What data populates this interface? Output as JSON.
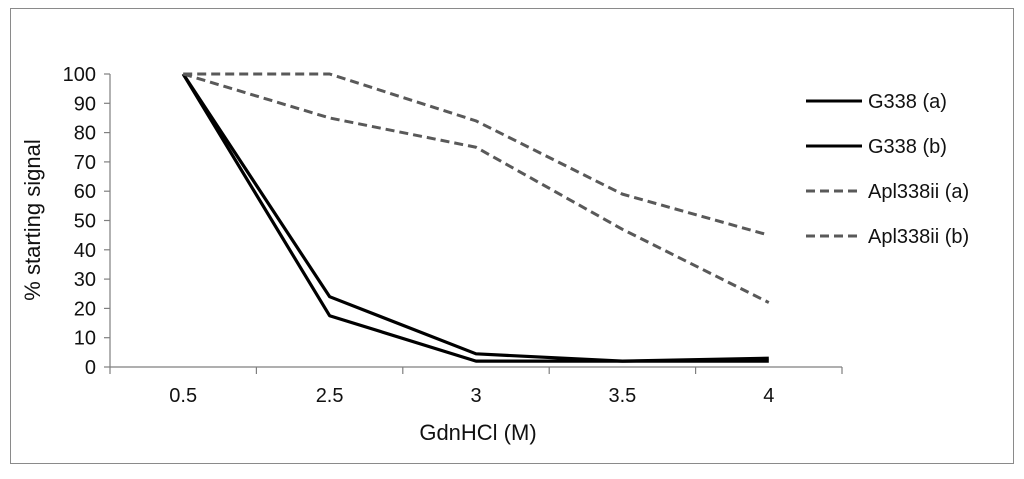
{
  "chart_data": {
    "type": "line",
    "title": "",
    "xlabel": "GdnHCl (M)",
    "ylabel": "% starting signal",
    "categories": [
      "0.5",
      "2.5",
      "3",
      "3.5",
      "4"
    ],
    "ylim": [
      0,
      100
    ],
    "yticks": [
      0,
      10,
      20,
      30,
      40,
      50,
      60,
      70,
      80,
      90,
      100
    ],
    "grid": false,
    "legend": "right",
    "series": [
      {
        "name": "G338 (a)",
        "style": "solid",
        "color": "#000000",
        "values": [
          100,
          24,
          4.5,
          2,
          2
        ]
      },
      {
        "name": "G338 (b)",
        "style": "solid",
        "color": "#000000",
        "values": [
          100,
          17.5,
          2,
          2,
          3
        ]
      },
      {
        "name": "Apl338ii (a)",
        "style": "dashed",
        "color": "#595959",
        "values": [
          100,
          100,
          84,
          59,
          45
        ]
      },
      {
        "name": "Apl338ii (b)",
        "style": "dashed",
        "color": "#595959",
        "values": [
          100,
          85,
          75,
          47,
          22
        ]
      }
    ]
  }
}
